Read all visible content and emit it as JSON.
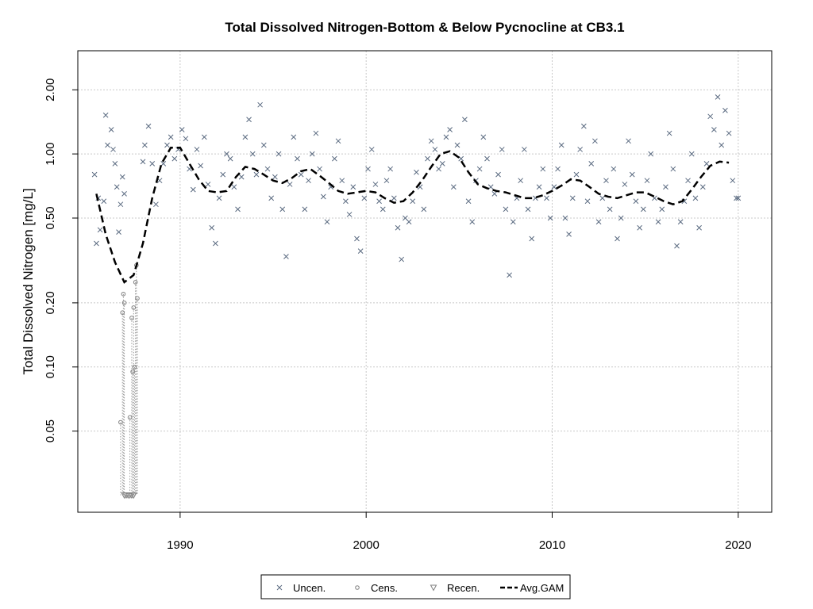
{
  "chart_data": {
    "type": "scatter",
    "title": "Total Dissolved Nitrogen-Bottom & Below Pycnocline at CB3.1",
    "xlabel": "",
    "ylabel": "Total Dissolved Nitrogen [mg/L]",
    "xlim": [
      1984.5,
      2021.8
    ],
    "ylim": [
      0.0208,
      3.05
    ],
    "y_scale": "log",
    "x_ticks": [
      1990,
      2000,
      2010,
      2020
    ],
    "x_tick_labels": [
      "1990",
      "2000",
      "2010",
      "2020"
    ],
    "y_ticks": [
      2.0,
      1.0,
      0.5,
      0.2,
      0.1,
      0.05
    ],
    "y_tick_labels": [
      "2.00",
      "1.00",
      "0.50",
      "0.20",
      "0.10",
      "0.05"
    ],
    "grid": true,
    "legend_position": "bottom",
    "legend": [
      "Uncen.",
      "Cens.",
      "Recen.",
      "Avg.GAM"
    ],
    "colors": {
      "uncensored": "#5a6a80",
      "censored": "#7f7f7f",
      "gam": "#000000",
      "grid": "#c8c8c8"
    },
    "series": [
      {
        "name": "Uncen.",
        "marker": "x",
        "points": [
          [
            1985.4,
            0.8
          ],
          [
            1985.5,
            0.38
          ],
          [
            1985.6,
            0.62
          ],
          [
            1985.7,
            0.44
          ],
          [
            1985.9,
            0.6
          ],
          [
            1986.0,
            1.52
          ],
          [
            1986.1,
            1.1
          ],
          [
            1986.3,
            1.3
          ],
          [
            1986.4,
            1.05
          ],
          [
            1986.5,
            0.9
          ],
          [
            1986.6,
            0.7
          ],
          [
            1986.7,
            0.43
          ],
          [
            1986.8,
            0.58
          ],
          [
            1986.9,
            0.78
          ],
          [
            1987.0,
            0.65
          ],
          [
            1988.0,
            0.92
          ],
          [
            1988.1,
            1.1
          ],
          [
            1988.3,
            1.35
          ],
          [
            1988.5,
            0.9
          ],
          [
            1988.7,
            0.58
          ],
          [
            1988.9,
            0.75
          ],
          [
            1989.1,
            0.9
          ],
          [
            1989.3,
            1.1
          ],
          [
            1989.5,
            1.2
          ],
          [
            1989.7,
            0.95
          ],
          [
            1989.9,
            1.05
          ],
          [
            1990.1,
            1.3
          ],
          [
            1990.3,
            1.18
          ],
          [
            1990.5,
            0.85
          ],
          [
            1990.7,
            0.68
          ],
          [
            1990.9,
            1.05
          ],
          [
            1991.1,
            0.88
          ],
          [
            1991.3,
            1.2
          ],
          [
            1991.5,
            0.72
          ],
          [
            1991.7,
            0.45
          ],
          [
            1991.9,
            0.38
          ],
          [
            1992.1,
            0.62
          ],
          [
            1992.3,
            0.8
          ],
          [
            1992.5,
            1.0
          ],
          [
            1992.7,
            0.95
          ],
          [
            1992.9,
            0.7
          ],
          [
            1993.1,
            0.55
          ],
          [
            1993.3,
            0.78
          ],
          [
            1993.5,
            1.2
          ],
          [
            1993.7,
            1.45
          ],
          [
            1993.9,
            1.0
          ],
          [
            1994.1,
            0.8
          ],
          [
            1994.3,
            1.7
          ],
          [
            1994.5,
            1.1
          ],
          [
            1994.7,
            0.85
          ],
          [
            1994.9,
            0.62
          ],
          [
            1995.1,
            0.78
          ],
          [
            1995.3,
            1.0
          ],
          [
            1995.5,
            0.55
          ],
          [
            1995.7,
            0.33
          ],
          [
            1995.9,
            0.72
          ],
          [
            1996.1,
            1.2
          ],
          [
            1996.3,
            0.95
          ],
          [
            1996.5,
            0.8
          ],
          [
            1996.7,
            0.55
          ],
          [
            1996.9,
            0.75
          ],
          [
            1997.1,
            1.0
          ],
          [
            1997.3,
            1.25
          ],
          [
            1997.5,
            0.85
          ],
          [
            1997.7,
            0.63
          ],
          [
            1997.9,
            0.48
          ],
          [
            1998.1,
            0.7
          ],
          [
            1998.3,
            0.95
          ],
          [
            1998.5,
            1.15
          ],
          [
            1998.7,
            0.75
          ],
          [
            1998.9,
            0.6
          ],
          [
            1999.1,
            0.52
          ],
          [
            1999.3,
            0.7
          ],
          [
            1999.5,
            0.4
          ],
          [
            1999.7,
            0.35
          ],
          [
            1999.9,
            0.62
          ],
          [
            2000.1,
            0.85
          ],
          [
            2000.3,
            1.05
          ],
          [
            2000.5,
            0.72
          ],
          [
            2000.7,
            0.6
          ],
          [
            2000.9,
            0.55
          ],
          [
            2001.1,
            0.75
          ],
          [
            2001.3,
            0.85
          ],
          [
            2001.5,
            0.62
          ],
          [
            2001.7,
            0.45
          ],
          [
            2001.9,
            0.32
          ],
          [
            2002.1,
            0.5
          ],
          [
            2002.3,
            0.48
          ],
          [
            2002.5,
            0.6
          ],
          [
            2002.7,
            0.82
          ],
          [
            2002.9,
            0.7
          ],
          [
            2003.1,
            0.55
          ],
          [
            2003.3,
            0.95
          ],
          [
            2003.5,
            1.15
          ],
          [
            2003.7,
            1.05
          ],
          [
            2003.9,
            0.85
          ],
          [
            2004.1,
            0.9
          ],
          [
            2004.3,
            1.2
          ],
          [
            2004.5,
            1.3
          ],
          [
            2004.7,
            0.7
          ],
          [
            2004.9,
            1.1
          ],
          [
            2005.1,
            0.95
          ],
          [
            2005.3,
            1.45
          ],
          [
            2005.5,
            0.6
          ],
          [
            2005.7,
            0.48
          ],
          [
            2005.9,
            0.75
          ],
          [
            2006.1,
            0.85
          ],
          [
            2006.3,
            1.2
          ],
          [
            2006.5,
            0.95
          ],
          [
            2006.7,
            0.7
          ],
          [
            2006.9,
            0.65
          ],
          [
            2007.1,
            0.8
          ],
          [
            2007.3,
            1.05
          ],
          [
            2007.5,
            0.55
          ],
          [
            2007.7,
            0.27
          ],
          [
            2007.9,
            0.48
          ],
          [
            2008.1,
            0.62
          ],
          [
            2008.3,
            0.75
          ],
          [
            2008.5,
            1.05
          ],
          [
            2008.7,
            0.55
          ],
          [
            2008.9,
            0.4
          ],
          [
            2009.1,
            0.62
          ],
          [
            2009.3,
            0.7
          ],
          [
            2009.5,
            0.85
          ],
          [
            2009.7,
            0.62
          ],
          [
            2009.9,
            0.5
          ],
          [
            2010.1,
            0.7
          ],
          [
            2010.3,
            0.85
          ],
          [
            2010.5,
            1.1
          ],
          [
            2010.7,
            0.5
          ],
          [
            2010.9,
            0.42
          ],
          [
            2011.1,
            0.62
          ],
          [
            2011.3,
            0.8
          ],
          [
            2011.5,
            1.05
          ],
          [
            2011.7,
            1.35
          ],
          [
            2011.9,
            0.6
          ],
          [
            2012.1,
            0.9
          ],
          [
            2012.3,
            1.15
          ],
          [
            2012.5,
            0.48
          ],
          [
            2012.7,
            0.62
          ],
          [
            2012.9,
            0.75
          ],
          [
            2013.1,
            0.55
          ],
          [
            2013.3,
            0.85
          ],
          [
            2013.5,
            0.4
          ],
          [
            2013.7,
            0.5
          ],
          [
            2013.9,
            0.72
          ],
          [
            2014.1,
            1.15
          ],
          [
            2014.3,
            0.8
          ],
          [
            2014.5,
            0.6
          ],
          [
            2014.7,
            0.45
          ],
          [
            2014.9,
            0.55
          ],
          [
            2015.1,
            0.75
          ],
          [
            2015.3,
            1.0
          ],
          [
            2015.5,
            0.62
          ],
          [
            2015.7,
            0.48
          ],
          [
            2015.9,
            0.55
          ],
          [
            2016.1,
            0.7
          ],
          [
            2016.3,
            1.25
          ],
          [
            2016.5,
            0.85
          ],
          [
            2016.7,
            0.37
          ],
          [
            2016.9,
            0.48
          ],
          [
            2017.1,
            0.6
          ],
          [
            2017.3,
            0.75
          ],
          [
            2017.5,
            1.0
          ],
          [
            2017.7,
            0.62
          ],
          [
            2017.9,
            0.45
          ],
          [
            2018.1,
            0.7
          ],
          [
            2018.3,
            0.9
          ],
          [
            2018.5,
            1.5
          ],
          [
            2018.7,
            1.3
          ],
          [
            2018.9,
            1.85
          ],
          [
            2019.1,
            1.1
          ],
          [
            2019.3,
            1.6
          ],
          [
            2019.5,
            1.25
          ],
          [
            2019.7,
            0.75
          ],
          [
            2019.9,
            0.62
          ],
          [
            2020.0,
            0.62
          ]
        ]
      },
      {
        "name": "Cens.",
        "marker": "circle",
        "points": [
          [
            1986.8,
            0.055
          ],
          [
            1986.9,
            0.18
          ],
          [
            1986.95,
            0.22
          ],
          [
            1987.0,
            0.2
          ],
          [
            1987.3,
            0.058
          ],
          [
            1987.4,
            0.17
          ],
          [
            1987.45,
            0.095
          ],
          [
            1987.5,
            0.19
          ],
          [
            1987.55,
            0.1
          ],
          [
            1987.6,
            0.25
          ],
          [
            1987.65,
            0.3
          ],
          [
            1987.7,
            0.21
          ]
        ]
      },
      {
        "name": "Recen.",
        "marker": "triangle-down",
        "points": [
          [
            1987.0,
            0.025
          ],
          [
            1987.1,
            0.025
          ],
          [
            1987.2,
            0.025
          ],
          [
            1987.3,
            0.025
          ],
          [
            1987.4,
            0.025
          ],
          [
            1987.5,
            0.025
          ]
        ]
      },
      {
        "name": "Avg.GAM",
        "marker": "dashed-line",
        "points": [
          [
            1985.5,
            0.65
          ],
          [
            1986.0,
            0.42
          ],
          [
            1986.5,
            0.31
          ],
          [
            1987.0,
            0.25
          ],
          [
            1987.5,
            0.27
          ],
          [
            1988.0,
            0.38
          ],
          [
            1988.5,
            0.62
          ],
          [
            1989.0,
            0.9
          ],
          [
            1989.5,
            1.07
          ],
          [
            1990.0,
            1.07
          ],
          [
            1990.5,
            0.9
          ],
          [
            1991.0,
            0.76
          ],
          [
            1991.5,
            0.67
          ],
          [
            1992.0,
            0.66
          ],
          [
            1992.5,
            0.67
          ],
          [
            1993.0,
            0.78
          ],
          [
            1993.5,
            0.87
          ],
          [
            1994.0,
            0.85
          ],
          [
            1994.5,
            0.8
          ],
          [
            1995.0,
            0.75
          ],
          [
            1995.5,
            0.73
          ],
          [
            1996.0,
            0.77
          ],
          [
            1996.5,
            0.83
          ],
          [
            1997.0,
            0.85
          ],
          [
            1997.5,
            0.79
          ],
          [
            1998.0,
            0.73
          ],
          [
            1998.5,
            0.67
          ],
          [
            1999.0,
            0.65
          ],
          [
            1999.5,
            0.66
          ],
          [
            2000.0,
            0.67
          ],
          [
            2000.5,
            0.66
          ],
          [
            2001.0,
            0.62
          ],
          [
            2001.5,
            0.59
          ],
          [
            2002.0,
            0.6
          ],
          [
            2002.5,
            0.66
          ],
          [
            2003.0,
            0.75
          ],
          [
            2003.5,
            0.87
          ],
          [
            2004.0,
            1.0
          ],
          [
            2004.5,
            1.03
          ],
          [
            2005.0,
            0.96
          ],
          [
            2005.5,
            0.82
          ],
          [
            2006.0,
            0.72
          ],
          [
            2006.5,
            0.69
          ],
          [
            2007.0,
            0.67
          ],
          [
            2007.5,
            0.66
          ],
          [
            2008.0,
            0.64
          ],
          [
            2008.5,
            0.62
          ],
          [
            2009.0,
            0.62
          ],
          [
            2009.5,
            0.64
          ],
          [
            2010.0,
            0.67
          ],
          [
            2010.5,
            0.71
          ],
          [
            2011.0,
            0.76
          ],
          [
            2011.5,
            0.75
          ],
          [
            2012.0,
            0.7
          ],
          [
            2012.5,
            0.65
          ],
          [
            2013.0,
            0.63
          ],
          [
            2013.5,
            0.62
          ],
          [
            2014.0,
            0.64
          ],
          [
            2014.5,
            0.66
          ],
          [
            2015.0,
            0.66
          ],
          [
            2015.5,
            0.63
          ],
          [
            2016.0,
            0.6
          ],
          [
            2016.5,
            0.58
          ],
          [
            2017.0,
            0.6
          ],
          [
            2017.5,
            0.68
          ],
          [
            2018.0,
            0.78
          ],
          [
            2018.5,
            0.88
          ],
          [
            2019.0,
            0.92
          ],
          [
            2019.5,
            0.91
          ]
        ]
      }
    ]
  }
}
